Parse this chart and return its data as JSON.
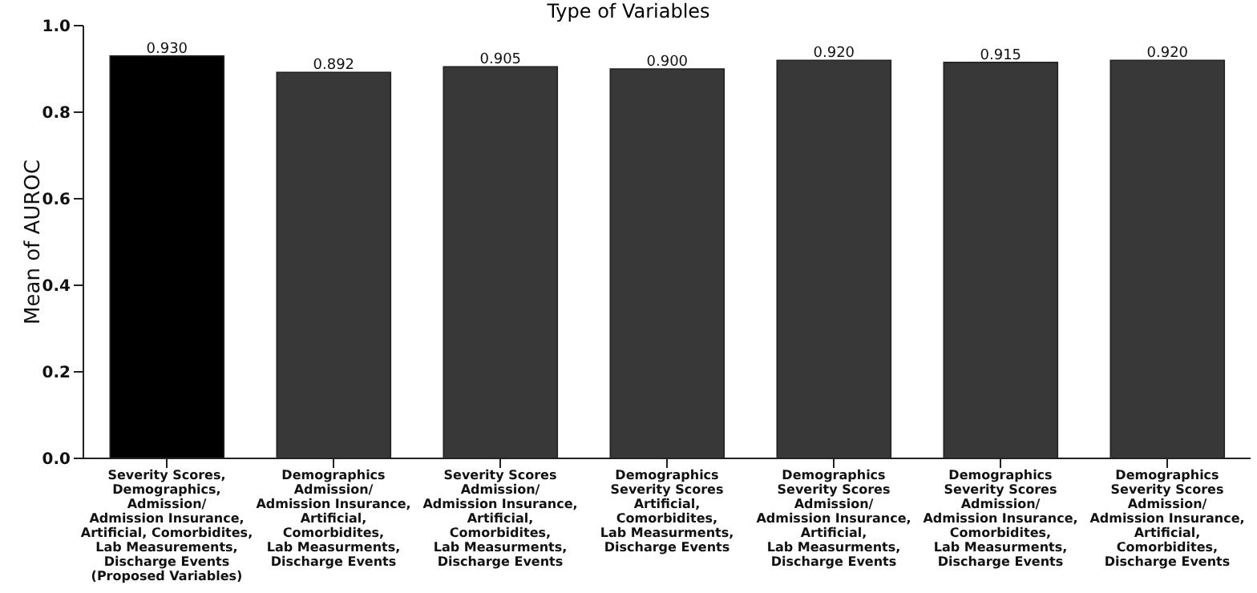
{
  "chart_data": {
    "type": "bar",
    "title": "Type of Variables",
    "ylabel": "Mean of AUROC",
    "categories": [
      "Severity Scores,\nDemographics,\nAdmission/\nAdmission Insurance,\nArtificial, Comorbidites,\nLab Measurements,\nDischarge Events\n(Proposed Variables)",
      "Demographics\nAdmission/\nAdmission Insurance,\nArtificial,\nComorbidites,\nLab Measurments,\nDischarge Events",
      "Severity Scores\nAdmission/\nAdmission Insurance,\nArtificial,\nComorbidites,\nLab Measurments,\nDischarge Events",
      "Demographics\nSeverity Scores\nArtificial,\nComorbidites,\nLab Measurments,\nDischarge Events",
      "Demographics\nSeverity Scores\nAdmission/\nAdmission Insurance,\nArtificial,\nLab Measurments,\nDischarge Events",
      "Demographics\nSeverity Scores\nAdmission/\nAdmission Insurance,\nComorbidites,\nLab Measurments,\nDischarge Events",
      "Demographics\nSeverity Scores\nAdmission/\nAdmission Insurance,\nArtificial,\nComorbidites,\nDischarge Events"
    ],
    "values": [
      0.93,
      0.892,
      0.905,
      0.9,
      0.92,
      0.915,
      0.92
    ],
    "colors": [
      "#000000",
      "#383838",
      "#383838",
      "#383838",
      "#383838",
      "#383838",
      "#383838"
    ],
    "ylim": [
      0,
      1
    ],
    "yticks": [
      {
        "value": 0,
        "label": "0.0"
      },
      {
        "value": 0.2,
        "label": "0.2"
      },
      {
        "value": 0.4,
        "label": "0.4"
      },
      {
        "value": 0.6,
        "label": "0.6"
      },
      {
        "value": 0.8,
        "label": "0.8"
      },
      {
        "value": 1,
        "label": "1.0"
      }
    ],
    "value_labels": [
      "0.930",
      "0.892",
      "0.905",
      "0.900",
      "0.920",
      "0.915",
      "0.920"
    ],
    "grid": false
  }
}
